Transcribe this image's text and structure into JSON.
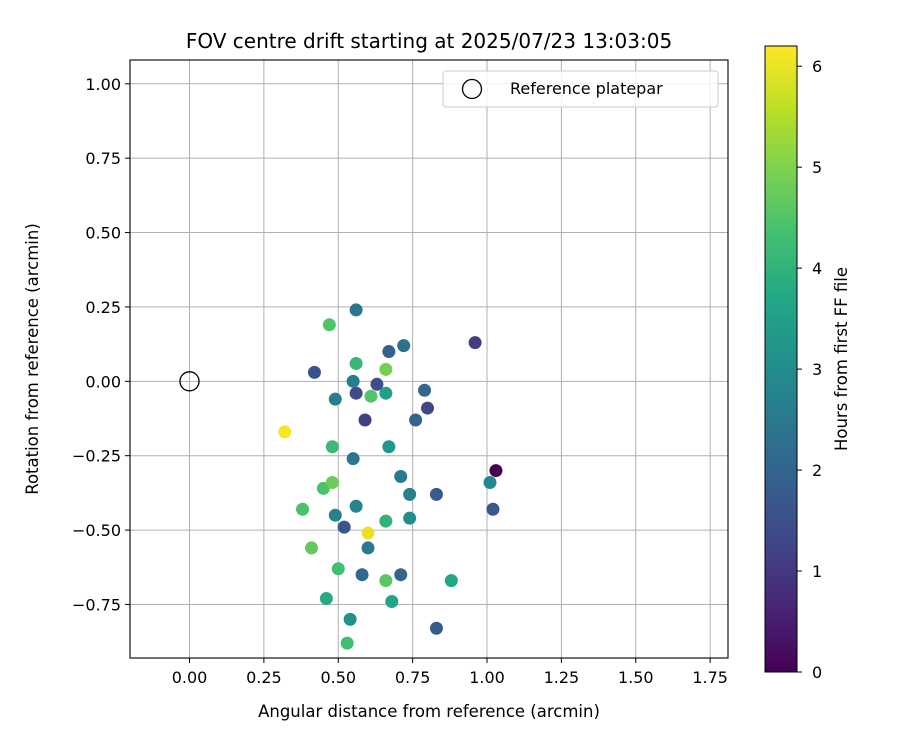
{
  "chart_data": {
    "type": "scatter",
    "title": "FOV centre drift starting at 2025/07/23 13:03:05",
    "xlabel": "Angular distance from reference (arcmin)",
    "ylabel": "Rotation from reference (arcmin)",
    "xlim": [
      -0.2,
      1.81
    ],
    "ylim": [
      -0.93,
      1.08
    ],
    "xticks": [
      "0.00",
      "0.25",
      "0.50",
      "0.75",
      "1.00",
      "1.25",
      "1.50",
      "1.75"
    ],
    "yticks": [
      "1.00",
      "0.75",
      "0.50",
      "0.25",
      "0.00",
      "−0.25",
      "−0.50",
      "−0.75"
    ],
    "grid": true,
    "legend": {
      "placement": "top-right",
      "label": "Reference platepar"
    },
    "reference_point": {
      "x": 0.0,
      "y": 0.0
    },
    "colorbar": {
      "label": "Hours from first FF file",
      "range": [
        0,
        6.2
      ],
      "ticks": [
        "0",
        "1",
        "2",
        "3",
        "4",
        "5",
        "6"
      ],
      "colormap": "viridis"
    },
    "points": [
      {
        "x": 1.03,
        "y": -0.3,
        "c": 0.0
      },
      {
        "x": 0.96,
        "y": 0.13,
        "c": 1.1
      },
      {
        "x": 0.59,
        "y": -0.13,
        "c": 1.2
      },
      {
        "x": 0.8,
        "y": -0.09,
        "c": 1.3
      },
      {
        "x": 0.56,
        "y": -0.04,
        "c": 1.4
      },
      {
        "x": 0.63,
        "y": -0.01,
        "c": 1.5
      },
      {
        "x": 0.42,
        "y": 0.03,
        "c": 1.6
      },
      {
        "x": 1.02,
        "y": -0.43,
        "c": 1.7
      },
      {
        "x": 0.52,
        "y": -0.49,
        "c": 1.7
      },
      {
        "x": 0.83,
        "y": -0.38,
        "c": 1.8
      },
      {
        "x": 0.83,
        "y": -0.83,
        "c": 1.8
      },
      {
        "x": 0.67,
        "y": 0.1,
        "c": 1.9
      },
      {
        "x": 0.76,
        "y": -0.13,
        "c": 1.9
      },
      {
        "x": 0.79,
        "y": -0.03,
        "c": 2.0
      },
      {
        "x": 0.71,
        "y": -0.65,
        "c": 2.0
      },
      {
        "x": 0.58,
        "y": -0.65,
        "c": 2.1
      },
      {
        "x": 0.72,
        "y": 0.12,
        "c": 2.3
      },
      {
        "x": 0.56,
        "y": 0.24,
        "c": 2.4
      },
      {
        "x": 0.55,
        "y": -0.26,
        "c": 2.4
      },
      {
        "x": 0.71,
        "y": -0.32,
        "c": 2.5
      },
      {
        "x": 0.6,
        "y": -0.56,
        "c": 2.5
      },
      {
        "x": 0.49,
        "y": -0.06,
        "c": 2.6
      },
      {
        "x": 0.55,
        "y": 0.0,
        "c": 2.6
      },
      {
        "x": 0.49,
        "y": -0.45,
        "c": 2.7
      },
      {
        "x": 0.74,
        "y": -0.38,
        "c": 2.7
      },
      {
        "x": 0.56,
        "y": -0.42,
        "c": 2.8
      },
      {
        "x": 1.01,
        "y": -0.34,
        "c": 2.9
      },
      {
        "x": 0.74,
        "y": -0.46,
        "c": 3.0
      },
      {
        "x": 0.54,
        "y": -0.8,
        "c": 3.1
      },
      {
        "x": 0.67,
        "y": -0.22,
        "c": 3.3
      },
      {
        "x": 0.66,
        "y": -0.04,
        "c": 3.5
      },
      {
        "x": 0.68,
        "y": -0.74,
        "c": 3.6
      },
      {
        "x": 0.88,
        "y": -0.67,
        "c": 3.7
      },
      {
        "x": 0.46,
        "y": -0.73,
        "c": 3.8
      },
      {
        "x": 0.66,
        "y": -0.47,
        "c": 4.0
      },
      {
        "x": 0.56,
        "y": 0.06,
        "c": 4.1
      },
      {
        "x": 0.48,
        "y": -0.22,
        "c": 4.2
      },
      {
        "x": 0.5,
        "y": -0.63,
        "c": 4.3
      },
      {
        "x": 0.53,
        "y": -0.88,
        "c": 4.3
      },
      {
        "x": 0.38,
        "y": -0.43,
        "c": 4.4
      },
      {
        "x": 0.45,
        "y": -0.36,
        "c": 4.4
      },
      {
        "x": 0.47,
        "y": 0.19,
        "c": 4.5
      },
      {
        "x": 0.61,
        "y": -0.05,
        "c": 4.5
      },
      {
        "x": 0.66,
        "y": -0.67,
        "c": 4.6
      },
      {
        "x": 0.41,
        "y": -0.56,
        "c": 4.7
      },
      {
        "x": 0.48,
        "y": -0.34,
        "c": 4.8
      },
      {
        "x": 0.66,
        "y": 0.04,
        "c": 4.9
      },
      {
        "x": 0.6,
        "y": -0.51,
        "c": 6.0
      },
      {
        "x": 0.32,
        "y": -0.17,
        "c": 6.1
      }
    ]
  }
}
